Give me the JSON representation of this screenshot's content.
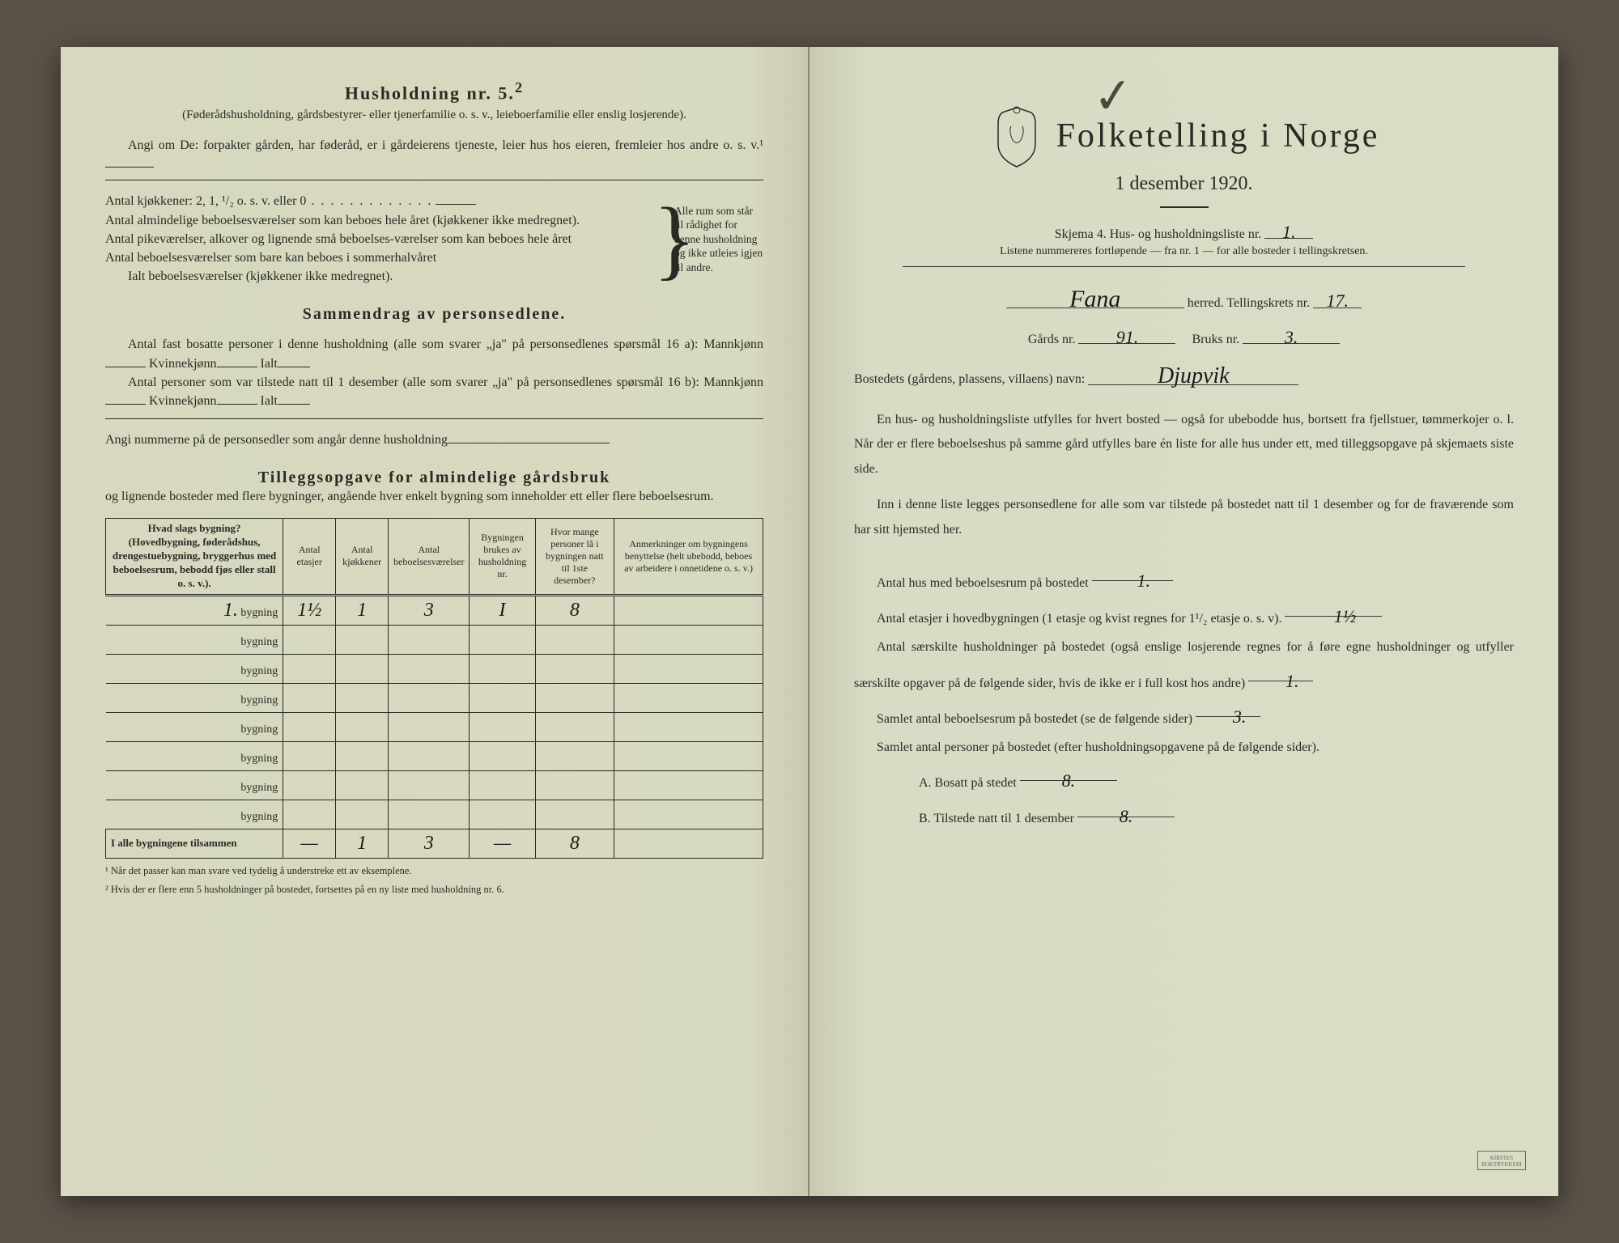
{
  "left": {
    "heading": "Husholdning nr. 5.",
    "heading_sup": "2",
    "intro1": "(Føderådshusholdning, gårdsbestyrer- eller tjenerfamilie o. s. v., leieboerfamilie eller enslig losjerende).",
    "intro2": "Angi om De: forpakter gården, har føderåd, er i gårdeierens tjeneste, leier hus hos eieren, fremleier hos andre o. s. v.¹",
    "kjokken_label": "Antal kjøkkener: 2, 1, ¹/₂ o. s. v. eller 0",
    "q1": "Antal almindelige beboelsesværelser som kan beboes hele året (kjøkkener ikke medregnet).",
    "q2": "Antal pikeværelser, alkover og lignende små beboelses-værelser som kan beboes hele året",
    "q3": "Antal beboelsesværelser som bare kan beboes i sommerhalvåret",
    "q4": "Ialt beboelsesværelser  (kjøkkener ikke medregnet).",
    "sidenote": "Alle rum som står til rådighet for denne husholdning og ikke utleies igjen til andre.",
    "sect2": "Sammendrag av personsedlene.",
    "p1a": "Antal fast bosatte personer i denne husholdning (alle som svarer „ja\" på personsedlenes spørsmål 16 a): Mannkjønn",
    "p1b": "Kvinnekjønn",
    "p1c": "Ialt",
    "p2a": "Antal personer som var tilstede natt til 1 desember (alle som svarer „ja\" på personsedlenes spørsmål 16 b): Mannkjønn",
    "p3": "Angi nummerne på de personsedler som angår denne husholdning",
    "sect3": "Tilleggsopgave for almindelige gårdsbruk",
    "sect3sub": "og lignende bosteder med flere bygninger, angående hver enkelt bygning som inneholder ett eller flere beboelsesrum.",
    "table": {
      "headers": [
        "Hvad slags bygning?\n(Hovedbygning, føderådshus, drengestuebygning, bryggerhus med beboelsesrum, bebodd fjøs eller stall o. s. v.).",
        "Antal etasjer",
        "Antal kjøkkener",
        "Antal beboelsesværelser",
        "Bygningen brukes av husholdning nr.",
        "Hvor mange personer lå i bygningen natt til 1ste desember?",
        "Anmerkninger om bygningens benyttelse (helt ubebodd, beboes av arbeidere i onnetidene o. s. v.)"
      ],
      "rows": [
        {
          "num": "1.",
          "label": "bygning",
          "c1": "1½",
          "c2": "1",
          "c3": "3",
          "c4": "I",
          "c5": "8",
          "c6": ""
        },
        {
          "num": "",
          "label": "bygning",
          "c1": "",
          "c2": "",
          "c3": "",
          "c4": "",
          "c5": "",
          "c6": ""
        },
        {
          "num": "",
          "label": "bygning",
          "c1": "",
          "c2": "",
          "c3": "",
          "c4": "",
          "c5": "",
          "c6": ""
        },
        {
          "num": "",
          "label": "bygning",
          "c1": "",
          "c2": "",
          "c3": "",
          "c4": "",
          "c5": "",
          "c6": ""
        },
        {
          "num": "",
          "label": "bygning",
          "c1": "",
          "c2": "",
          "c3": "",
          "c4": "",
          "c5": "",
          "c6": ""
        },
        {
          "num": "",
          "label": "bygning",
          "c1": "",
          "c2": "",
          "c3": "",
          "c4": "",
          "c5": "",
          "c6": ""
        },
        {
          "num": "",
          "label": "bygning",
          "c1": "",
          "c2": "",
          "c3": "",
          "c4": "",
          "c5": "",
          "c6": ""
        },
        {
          "num": "",
          "label": "bygning",
          "c1": "",
          "c2": "",
          "c3": "",
          "c4": "",
          "c5": "",
          "c6": ""
        }
      ],
      "total_label": "I alle bygningene tilsammen",
      "totals": {
        "c1": "—",
        "c2": "1",
        "c3": "3",
        "c4": "—",
        "c5": "8",
        "c6": ""
      }
    },
    "foot1": "Når det passer kan man svare ved tydelig å understreke ett av eksemplene.",
    "foot2": "Hvis der er flere enn 5 husholdninger på bostedet, fortsettes på en ny liste med husholdning nr. 6."
  },
  "right": {
    "title": "Folketelling i Norge",
    "subtitle": "1 desember 1920.",
    "skjema": "Skjema 4.   Hus- og husholdningsliste nr.",
    "skjema_val": "1.",
    "listnote": "Listene nummereres fortløpende — fra nr. 1 — for alle bosteder i tellingskretsen.",
    "herred_val": "Fana",
    "herred_label": "herred.   Tellingskrets nr.",
    "krets_val": "17.",
    "gard_label": "Gårds nr.",
    "gard_val": "91.",
    "bruk_label": "Bruks nr.",
    "bruk_val": "3.",
    "bosted_label": "Bostedets (gårdens, plassens, villaens) navn:",
    "bosted_val": "Djupvik",
    "para1": "En hus- og husholdningsliste utfylles for hvert bosted — også for ubebodde hus, bortsett fra fjellstuer, tømmerkojer o. l.  Når der er flere beboelseshus på samme gård utfylles bare én liste for alle hus under ett, med tilleggsopgave på skjemaets siste side.",
    "para2": "Inn i denne liste legges personsedlene for alle som var tilstede på bostedet natt til 1 desember og for de fraværende som har sitt hjemsted her.",
    "q1": "Antal hus med beboelsesrum på bostedet",
    "q1v": "1.",
    "q2a": "Antal etasjer i hovedbygningen (1 etasje og kvist regnes for 1¹/₂ etasje o. s. v).",
    "q2v": "1½",
    "q3": "Antal særskilte husholdninger på bostedet (også enslige losjerende regnes for å føre egne husholdninger og utfyller særskilte opgaver på de følgende sider, hvis de ikke er i full kost hos andre)",
    "q3v": "1.",
    "q4": "Samlet antal beboelsesrum på bostedet (se de følgende sider)",
    "q4v": "3.",
    "q5": "Samlet antal personer på bostedet (efter husholdningsopgavene på de følgende sider).",
    "qA": "A.  Bosatt på stedet",
    "qAv": "8.",
    "qB": "B.  Tilstede natt til 1 desember",
    "qBv": "8."
  },
  "colors": {
    "paper": "#d9dac3",
    "ink": "#2a2a24",
    "hand": "#1a1a1a"
  }
}
